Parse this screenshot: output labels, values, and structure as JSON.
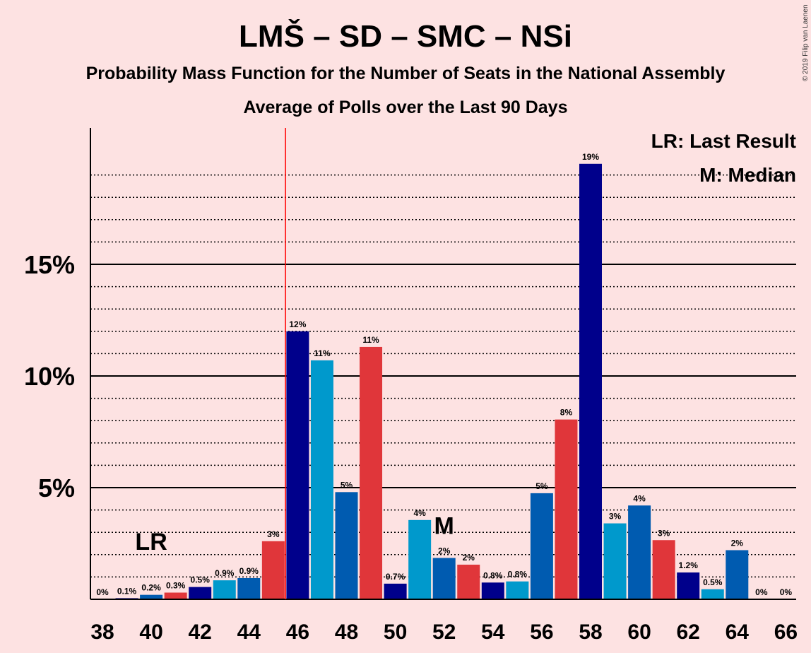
{
  "chart_data": {
    "type": "bar",
    "title": "LMŠ – SD – SMC – NSi",
    "subtitle": "Probability Mass Function for the Number of Seats in the National Assembly",
    "subtitle2": "Average of Polls over the Last 90 Days",
    "copyright": "© 2019 Filip van Laenen",
    "legend": {
      "lr": "LR: Last Result",
      "m": "M: Median",
      "position": "top-right"
    },
    "y_ticks": [
      {
        "value": 5,
        "label": "5%"
      },
      {
        "value": 10,
        "label": "10%"
      },
      {
        "value": 15,
        "label": "15%"
      }
    ],
    "ylim": [
      0,
      21
    ],
    "x_ticks": [
      38,
      40,
      42,
      44,
      46,
      48,
      50,
      52,
      54,
      56,
      58,
      60,
      62,
      64,
      66
    ],
    "xlim": [
      37.5,
      66.5
    ],
    "last_result": {
      "seat": 45.5,
      "marker_seat": 40,
      "label": "LR"
    },
    "median": {
      "seat": 52,
      "label": "M"
    },
    "colors": {
      "background": "#fde2e2",
      "LMS": "#00008b",
      "SD": "#e0363a",
      "SMC": "#0099cc",
      "NSi": "#005bb0",
      "last_result_line": "#ff0000"
    },
    "bars": [
      {
        "seat": 38,
        "value": 0.0,
        "label": "0%",
        "party": "NSi"
      },
      {
        "seat": 39,
        "value": 0.05,
        "label": "0.1%",
        "party": "LMS"
      },
      {
        "seat": 40,
        "value": 0.2,
        "label": "0.2%",
        "party": "NSi"
      },
      {
        "seat": 41,
        "value": 0.3,
        "label": "0.3%",
        "party": "SD"
      },
      {
        "seat": 42,
        "value": 0.55,
        "label": "0.5%",
        "party": "LMS"
      },
      {
        "seat": 43,
        "value": 0.85,
        "label": "0.9%",
        "party": "SMC"
      },
      {
        "seat": 44,
        "value": 0.95,
        "label": "0.9%",
        "party": "NSi"
      },
      {
        "seat": 45,
        "value": 2.6,
        "label": "3%",
        "party": "SD"
      },
      {
        "seat": 46,
        "value": 12.0,
        "label": "12%",
        "party": "LMS"
      },
      {
        "seat": 47,
        "value": 10.7,
        "label": "11%",
        "party": "SMC"
      },
      {
        "seat": 48,
        "value": 4.8,
        "label": "5%",
        "party": "NSi"
      },
      {
        "seat": 49,
        "value": 11.3,
        "label": "11%",
        "party": "SD"
      },
      {
        "seat": 50,
        "value": 0.7,
        "label": "0.7%",
        "party": "LMS"
      },
      {
        "seat": 51,
        "value": 3.55,
        "label": "4%",
        "party": "SMC"
      },
      {
        "seat": 52,
        "value": 1.85,
        "label": "2%",
        "party": "NSi"
      },
      {
        "seat": 53,
        "value": 1.55,
        "label": "2%",
        "party": "SD"
      },
      {
        "seat": 54,
        "value": 0.75,
        "label": "0.8%",
        "party": "LMS"
      },
      {
        "seat": 55,
        "value": 0.8,
        "label": "0.8%",
        "party": "SMC"
      },
      {
        "seat": 56,
        "value": 4.75,
        "label": "5%",
        "party": "NSi"
      },
      {
        "seat": 57,
        "value": 8.05,
        "label": "8%",
        "party": "SD"
      },
      {
        "seat": 58,
        "value": 19.5,
        "label": "19%",
        "party": "LMS"
      },
      {
        "seat": 59,
        "value": 3.4,
        "label": "3%",
        "party": "SMC"
      },
      {
        "seat": 60,
        "value": 4.2,
        "label": "4%",
        "party": "NSi"
      },
      {
        "seat": 61,
        "value": 2.65,
        "label": "3%",
        "party": "SD"
      },
      {
        "seat": 62,
        "value": 1.2,
        "label": "1.2%",
        "party": "LMS"
      },
      {
        "seat": 63,
        "value": 0.45,
        "label": "0.5%",
        "party": "SMC"
      },
      {
        "seat": 64,
        "value": 2.2,
        "label": "2%",
        "party": "NSi"
      },
      {
        "seat": 65,
        "value": 0.0,
        "label": "0%",
        "party": "SD"
      },
      {
        "seat": 66,
        "value": 0.0,
        "label": "0%",
        "party": "LMS"
      }
    ]
  }
}
